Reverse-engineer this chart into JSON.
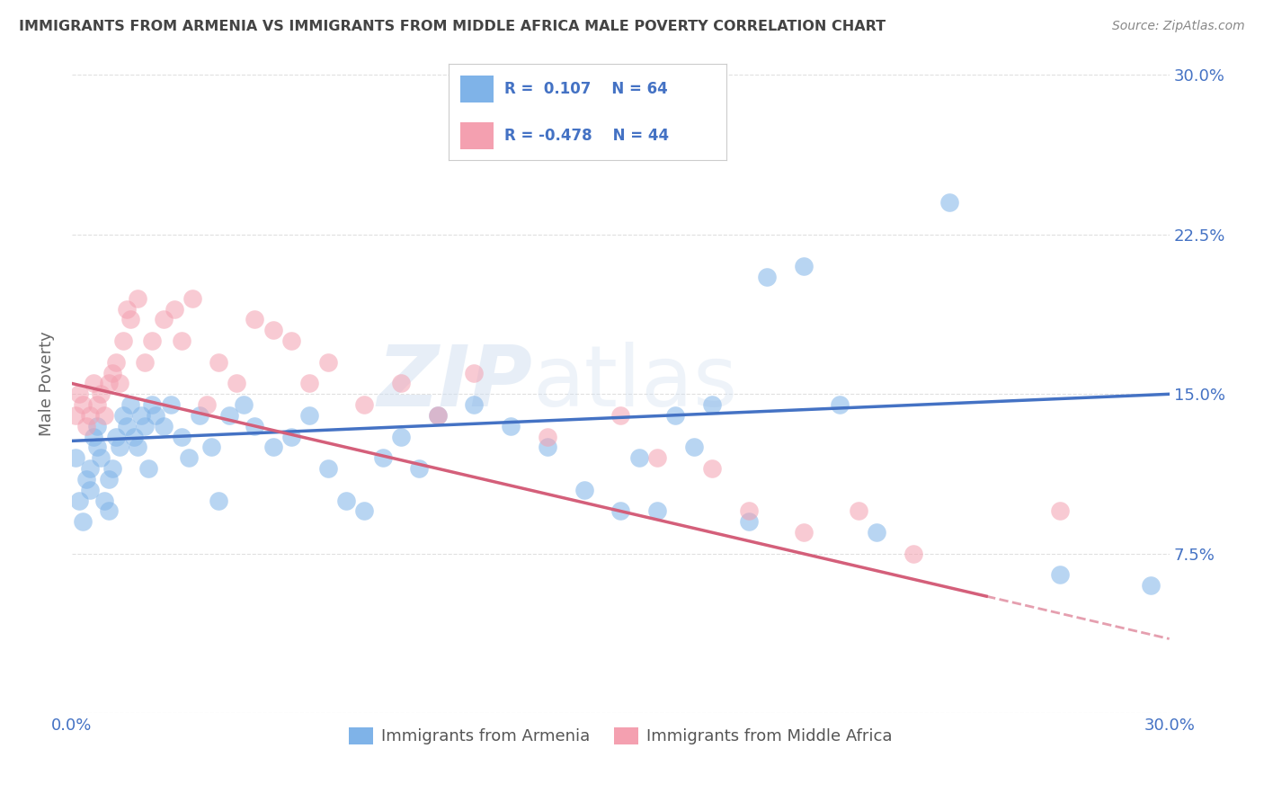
{
  "title": "IMMIGRANTS FROM ARMENIA VS IMMIGRANTS FROM MIDDLE AFRICA MALE POVERTY CORRELATION CHART",
  "source": "Source: ZipAtlas.com",
  "ylabel": "Male Poverty",
  "y_ticks": [
    0.0,
    0.075,
    0.15,
    0.225,
    0.3
  ],
  "y_tick_labels": [
    "",
    "7.5%",
    "15.0%",
    "22.5%",
    "30.0%"
  ],
  "xlim": [
    0.0,
    0.3
  ],
  "ylim": [
    0.0,
    0.31
  ],
  "color_armenia": "#7fb3e8",
  "color_africa": "#f4a0b0",
  "color_trendline_armenia": "#4472c4",
  "color_trendline_africa": "#d45f7a",
  "color_axis_labels": "#4472c4",
  "color_title": "#444444",
  "background": "#ffffff",
  "grid_color": "#cccccc",
  "watermark_zip": "ZIP",
  "watermark_atlas": "atlas",
  "armenia_x": [
    0.001,
    0.002,
    0.003,
    0.004,
    0.005,
    0.005,
    0.006,
    0.007,
    0.007,
    0.008,
    0.009,
    0.01,
    0.01,
    0.011,
    0.012,
    0.013,
    0.014,
    0.015,
    0.016,
    0.017,
    0.018,
    0.019,
    0.02,
    0.021,
    0.022,
    0.023,
    0.025,
    0.027,
    0.03,
    0.032,
    0.035,
    0.038,
    0.04,
    0.043,
    0.047,
    0.05,
    0.055,
    0.06,
    0.065,
    0.07,
    0.075,
    0.08,
    0.085,
    0.09,
    0.095,
    0.1,
    0.11,
    0.12,
    0.13,
    0.14,
    0.15,
    0.155,
    0.16,
    0.165,
    0.17,
    0.175,
    0.185,
    0.19,
    0.2,
    0.21,
    0.22,
    0.24,
    0.27,
    0.295
  ],
  "armenia_y": [
    0.12,
    0.1,
    0.09,
    0.11,
    0.105,
    0.115,
    0.13,
    0.125,
    0.135,
    0.12,
    0.1,
    0.11,
    0.095,
    0.115,
    0.13,
    0.125,
    0.14,
    0.135,
    0.145,
    0.13,
    0.125,
    0.14,
    0.135,
    0.115,
    0.145,
    0.14,
    0.135,
    0.145,
    0.13,
    0.12,
    0.14,
    0.125,
    0.1,
    0.14,
    0.145,
    0.135,
    0.125,
    0.13,
    0.14,
    0.115,
    0.1,
    0.095,
    0.12,
    0.13,
    0.115,
    0.14,
    0.145,
    0.135,
    0.125,
    0.105,
    0.095,
    0.12,
    0.095,
    0.14,
    0.125,
    0.145,
    0.09,
    0.205,
    0.21,
    0.145,
    0.085,
    0.24,
    0.065,
    0.06
  ],
  "africa_x": [
    0.001,
    0.002,
    0.003,
    0.004,
    0.005,
    0.006,
    0.007,
    0.008,
    0.009,
    0.01,
    0.011,
    0.012,
    0.013,
    0.014,
    0.015,
    0.016,
    0.018,
    0.02,
    0.022,
    0.025,
    0.028,
    0.03,
    0.033,
    0.037,
    0.04,
    0.045,
    0.05,
    0.055,
    0.06,
    0.065,
    0.07,
    0.08,
    0.09,
    0.1,
    0.11,
    0.13,
    0.15,
    0.16,
    0.175,
    0.185,
    0.2,
    0.215,
    0.23,
    0.27
  ],
  "africa_y": [
    0.14,
    0.15,
    0.145,
    0.135,
    0.14,
    0.155,
    0.145,
    0.15,
    0.14,
    0.155,
    0.16,
    0.165,
    0.155,
    0.175,
    0.19,
    0.185,
    0.195,
    0.165,
    0.175,
    0.185,
    0.19,
    0.175,
    0.195,
    0.145,
    0.165,
    0.155,
    0.185,
    0.18,
    0.175,
    0.155,
    0.165,
    0.145,
    0.155,
    0.14,
    0.16,
    0.13,
    0.14,
    0.12,
    0.115,
    0.095,
    0.085,
    0.095,
    0.075,
    0.095
  ],
  "trendline_armenia_x0": 0.0,
  "trendline_armenia_y0": 0.128,
  "trendline_armenia_x1": 0.3,
  "trendline_armenia_y1": 0.15,
  "trendline_africa_x0": 0.0,
  "trendline_africa_y0": 0.155,
  "trendline_africa_x1": 0.25,
  "trendline_africa_y1": 0.055,
  "trendline_africa_dash_x0": 0.25,
  "trendline_africa_dash_y0": 0.055,
  "trendline_africa_dash_x1": 0.3,
  "trendline_africa_dash_y1": 0.035
}
